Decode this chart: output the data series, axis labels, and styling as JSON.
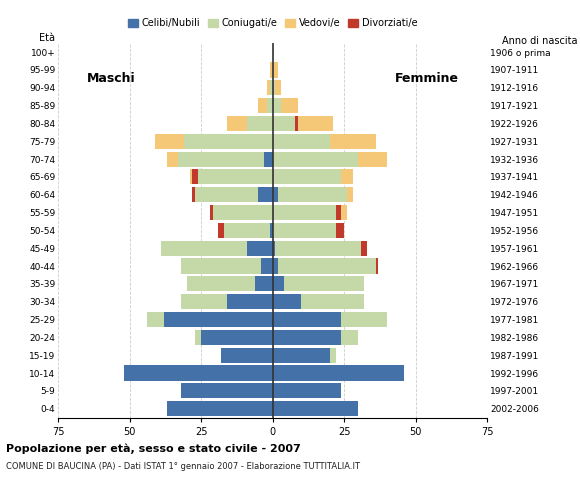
{
  "age_groups": [
    "0-4",
    "5-9",
    "10-14",
    "15-19",
    "20-24",
    "25-29",
    "30-34",
    "35-39",
    "40-44",
    "45-49",
    "50-54",
    "55-59",
    "60-64",
    "65-69",
    "70-74",
    "75-79",
    "80-84",
    "85-89",
    "90-94",
    "95-99",
    "100+"
  ],
  "birth_years": [
    "2002-2006",
    "1997-2001",
    "1992-1996",
    "1987-1991",
    "1982-1986",
    "1977-1981",
    "1972-1976",
    "1967-1971",
    "1962-1966",
    "1957-1961",
    "1952-1956",
    "1947-1951",
    "1942-1946",
    "1937-1941",
    "1932-1936",
    "1927-1931",
    "1922-1926",
    "1917-1921",
    "1912-1916",
    "1907-1911",
    "1906 o prima"
  ],
  "males": {
    "celibi": [
      37,
      32,
      52,
      18,
      25,
      38,
      16,
      6,
      4,
      9,
      1,
      0,
      5,
      0,
      3,
      0,
      0,
      0,
      0,
      0,
      0
    ],
    "coniugati": [
      0,
      0,
      0,
      0,
      2,
      6,
      16,
      24,
      28,
      30,
      16,
      21,
      22,
      26,
      30,
      31,
      9,
      2,
      1,
      0,
      0
    ],
    "vedovi": [
      0,
      0,
      0,
      0,
      0,
      0,
      0,
      0,
      0,
      0,
      0,
      0,
      0,
      1,
      4,
      10,
      7,
      3,
      1,
      1,
      0
    ],
    "divorziati": [
      0,
      0,
      0,
      0,
      0,
      0,
      0,
      0,
      0,
      0,
      2,
      1,
      1,
      2,
      0,
      0,
      0,
      0,
      0,
      0,
      0
    ]
  },
  "females": {
    "nubili": [
      30,
      24,
      46,
      20,
      24,
      24,
      10,
      4,
      2,
      1,
      0,
      0,
      2,
      0,
      0,
      0,
      0,
      0,
      0,
      0,
      0
    ],
    "coniugate": [
      0,
      0,
      0,
      2,
      6,
      16,
      22,
      28,
      34,
      30,
      22,
      22,
      24,
      24,
      30,
      20,
      8,
      3,
      1,
      0,
      0
    ],
    "vedove": [
      0,
      0,
      0,
      0,
      0,
      0,
      0,
      0,
      0,
      0,
      0,
      2,
      2,
      4,
      10,
      16,
      12,
      6,
      2,
      2,
      0
    ],
    "divorziate": [
      0,
      0,
      0,
      0,
      0,
      0,
      0,
      0,
      1,
      2,
      3,
      2,
      0,
      0,
      0,
      0,
      1,
      0,
      0,
      0,
      0
    ]
  },
  "colors": {
    "celibi_nubili": "#4472a8",
    "coniugati": "#c5d9a8",
    "vedovi": "#f5c878",
    "divorziati": "#c0392b"
  },
  "title": "Popolazione per età, sesso e stato civile - 2007",
  "subtitle": "COMUNE DI BAUCINA (PA) - Dati ISTAT 1° gennaio 2007 - Elaborazione TUTTITALIA.IT",
  "xlim": 75,
  "legend_labels": [
    "Celibi/Nubili",
    "Coniugati/e",
    "Vedovi/e",
    "Divorziati/e"
  ]
}
